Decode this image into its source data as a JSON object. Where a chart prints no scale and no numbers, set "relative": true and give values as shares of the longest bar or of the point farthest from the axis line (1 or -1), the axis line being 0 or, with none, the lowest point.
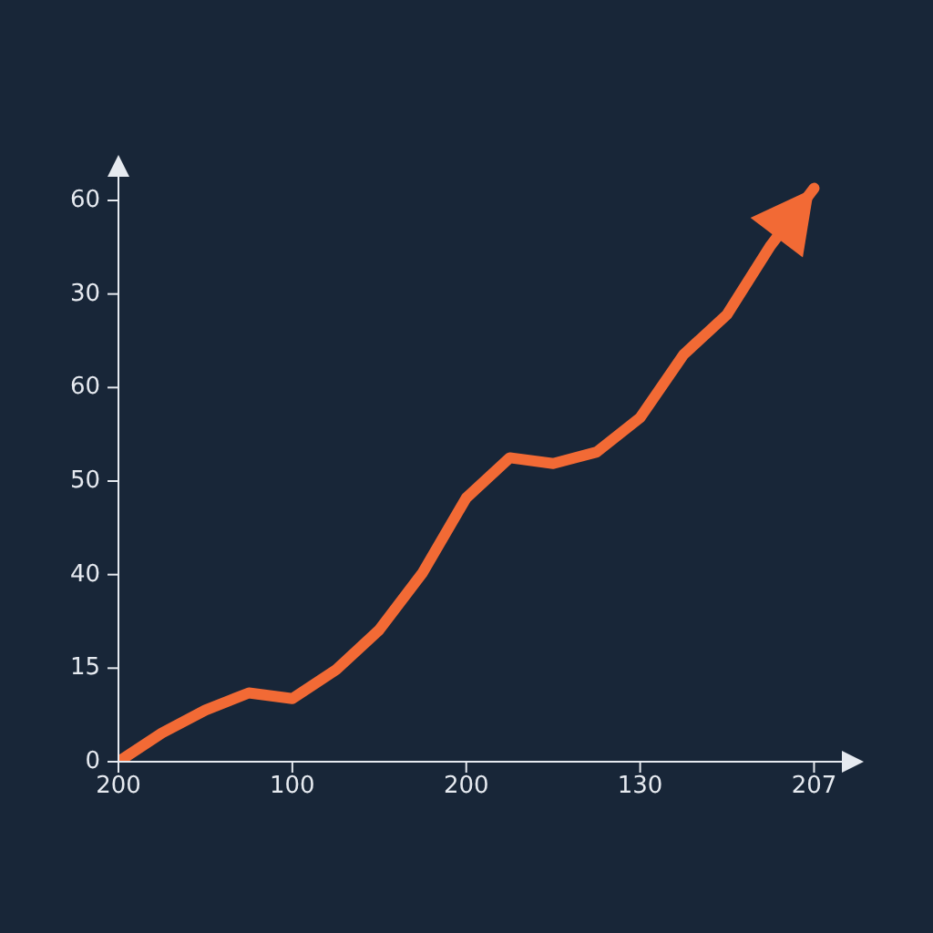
{
  "chart_data": {
    "type": "line",
    "relative": true,
    "color": "#f26a35",
    "marker": "none",
    "line_style": "solid",
    "grid": false,
    "legend": false,
    "categories": [
      "200",
      null,
      null,
      null,
      "100",
      null,
      null,
      null,
      "200",
      null,
      null,
      null,
      "130",
      null,
      null,
      null,
      "207"
    ],
    "values": [
      0,
      0.05,
      0.09,
      0.12,
      0.11,
      0.16,
      0.23,
      0.33,
      0.46,
      0.53,
      0.52,
      0.54,
      0.6,
      0.71,
      0.78,
      0.9,
      1
    ],
    "annotations": [
      "60",
      "30",
      "60",
      "50",
      "40",
      "15",
      "0"
    ]
  }
}
